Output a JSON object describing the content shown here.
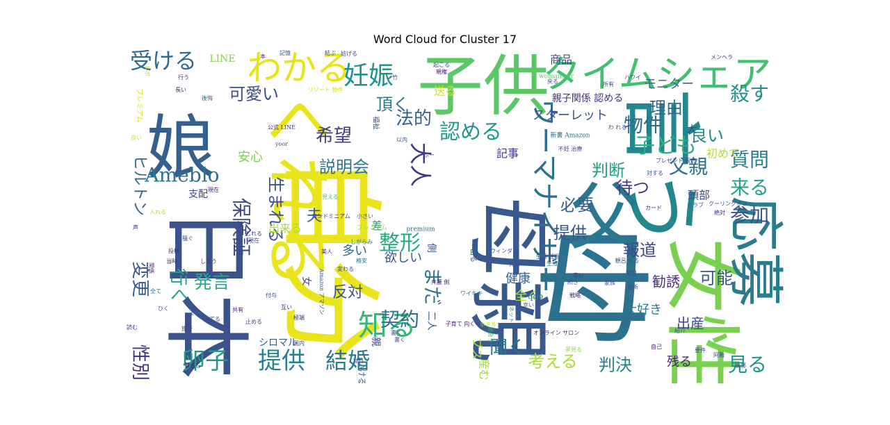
{
  "chart_data": {
    "type": "wordcloud",
    "title": "Word Cloud for Cluster 17",
    "words": [
      {
        "text": "子供",
        "weight": 100,
        "color": "#5ac864"
      },
      {
        "text": "娘",
        "weight": 96,
        "color": "#355f8d"
      },
      {
        "text": "母親",
        "weight": 95,
        "color": "#38598c"
      },
      {
        "text": "母",
        "weight": 94,
        "color": "#2c728e"
      },
      {
        "text": "日本",
        "weight": 93,
        "color": "#3b528b"
      },
      {
        "text": "自分",
        "weight": 92,
        "color": "#eae51a"
      },
      {
        "text": "言う",
        "weight": 91,
        "color": "#24868e"
      },
      {
        "text": "父",
        "weight": 88,
        "color": "#2a788e"
      },
      {
        "text": "女性",
        "weight": 87,
        "color": "#7ad151"
      },
      {
        "text": "くれる",
        "weight": 85,
        "color": "#eae51a"
      },
      {
        "text": "応募",
        "weight": 80,
        "color": "#287c8e"
      },
      {
        "text": "タイムシェア",
        "weight": 76,
        "color": "#44bf70"
      },
      {
        "text": "わかる",
        "weight": 70,
        "color": "#e5e419"
      },
      {
        "text": "ウーマナイザー",
        "weight": 62,
        "color": "#2d708e"
      },
      {
        "text": "妊娠",
        "weight": 55,
        "color": "#21918c"
      },
      {
        "text": "知る",
        "weight": 54,
        "color": "#35b779"
      },
      {
        "text": "受ける",
        "weight": 50,
        "color": "#31688e"
      },
      {
        "text": "卵子",
        "weight": 48,
        "color": "#1e9c89"
      },
      {
        "text": "提供",
        "weight": 48,
        "color": "#26828e"
      },
      {
        "text": "結婚",
        "weight": 47,
        "color": "#2a788e"
      },
      {
        "text": "整形",
        "weight": 46,
        "color": "#25ab82"
      },
      {
        "text": "保険証",
        "weight": 45,
        "color": "#3e4a89"
      },
      {
        "text": "殺す",
        "weight": 45,
        "color": "#21918c"
      },
      {
        "text": "大人",
        "weight": 44,
        "color": "#453781"
      },
      {
        "text": "認める",
        "weight": 44,
        "color": "#1f988b"
      },
      {
        "text": "子ども",
        "weight": 43,
        "color": "#2db27d"
      },
      {
        "text": "物件",
        "weight": 42,
        "color": "#2e6d8e"
      },
      {
        "text": "質問",
        "weight": 42,
        "color": "#287d8e"
      },
      {
        "text": "性別",
        "weight": 42,
        "color": "#46327e"
      },
      {
        "text": "変更",
        "weight": 42,
        "color": "#375b8d"
      },
      {
        "text": "ヒルトン",
        "weight": 41,
        "color": "#31688e"
      },
      {
        "text": "Ameblo",
        "weight": 40,
        "color": "#2c728e"
      },
      {
        "text": "契約",
        "weight": 40,
        "color": "#2d708e"
      },
      {
        "text": "まだ",
        "weight": 40,
        "color": "#2a768e"
      },
      {
        "text": "来る",
        "weight": 40,
        "color": "#20a386"
      },
      {
        "text": "参加",
        "weight": 40,
        "color": "#3b528b"
      },
      {
        "text": "父親",
        "weight": 40,
        "color": "#2c718e"
      },
      {
        "text": "見る",
        "weight": 39,
        "color": "#21918c"
      },
      {
        "text": "理由",
        "weight": 38,
        "color": "#2f6b8e"
      },
      {
        "text": "希望",
        "weight": 37,
        "color": "#443a83"
      },
      {
        "text": "発言",
        "weight": 37,
        "color": "#25ab82"
      },
      {
        "text": "行く",
        "weight": 37,
        "color": "#22a785"
      },
      {
        "text": "聞く",
        "weight": 36,
        "color": "#2c738e"
      },
      {
        "text": "考える",
        "weight": 35,
        "color": "#a8db34"
      },
      {
        "text": "説明会",
        "weight": 35,
        "color": "#2b758e"
      },
      {
        "text": "法的",
        "weight": 35,
        "color": "#34618d"
      },
      {
        "text": "頂く",
        "weight": 34,
        "color": "#2a788e"
      },
      {
        "text": "可愛い",
        "weight": 33,
        "color": "#3d4e8a"
      },
      {
        "text": "判決",
        "weight": 33,
        "color": "#26828e"
      },
      {
        "text": "待つ",
        "weight": 32,
        "color": "#453781"
      },
      {
        "text": "良い",
        "weight": 32,
        "color": "#24868e"
      },
      {
        "text": "生まれる",
        "weight": 32,
        "color": "#3b528b"
      },
      {
        "text": "必要",
        "weight": 31,
        "color": "#34618d"
      },
      {
        "text": "提供",
        "weight": 31,
        "color": "#39568c"
      },
      {
        "text": "判断",
        "weight": 31,
        "color": "#1fa088"
      },
      {
        "text": "可能",
        "weight": 30,
        "color": "#3a548c"
      },
      {
        "text": "報道",
        "weight": 30,
        "color": "#3e4989"
      },
      {
        "text": "夫",
        "weight": 30,
        "color": "#37598c"
      },
      {
        "text": "反対",
        "weight": 29,
        "color": "#3a538b"
      },
      {
        "text": "スターレット",
        "weight": 26,
        "color": "#3c508b"
      },
      {
        "text": "出産",
        "weight": 26,
        "color": "#404688"
      },
      {
        "text": "勧誘",
        "weight": 26,
        "color": "#472f7d"
      },
      {
        "text": "健康",
        "weight": 25,
        "color": "#34618d"
      },
      {
        "text": "大好き",
        "weight": 25,
        "color": "#2a788e"
      },
      {
        "text": "残る",
        "weight": 24,
        "color": "#482374"
      },
      {
        "text": "モニター",
        "weight": 24,
        "color": "#2f6b8e"
      },
      {
        "text": "欲しい",
        "weight": 24,
        "color": "#39568c"
      },
      {
        "text": "安心",
        "weight": 23,
        "color": "#7ad151"
      },
      {
        "text": "多い",
        "weight": 23,
        "color": "#31688e"
      },
      {
        "text": "全く",
        "weight": 22,
        "color": "#b5de2b"
      },
      {
        "text": "記事",
        "weight": 22,
        "color": "#443983"
      },
      {
        "text": "頭部",
        "weight": 22,
        "color": "#3e4c8a"
      },
      {
        "text": "商品",
        "weight": 22,
        "color": "#3f4788"
      },
      {
        "text": "初めて",
        "weight": 21,
        "color": "#b5de2b"
      },
      {
        "text": "産む",
        "weight": 20,
        "color": "#a0da39"
      },
      {
        "text": "送る",
        "weight": 20,
        "color": "#d8e219"
      },
      {
        "text": "出来る",
        "weight": 19,
        "color": "#addc30"
      },
      {
        "text": "差",
        "weight": 19,
        "color": "#20a386"
      },
      {
        "text": "ブス",
        "weight": 19,
        "color": "#bddf26"
      },
      {
        "text": "支配",
        "weight": 18,
        "color": "#404588"
      },
      {
        "text": "大",
        "weight": 18,
        "color": "#3e4989"
      },
      {
        "text": "親子関係 認める",
        "weight": 18,
        "color": "#472d7b"
      },
      {
        "text": "シロマル",
        "weight": 17,
        "color": "#355f8d"
      },
      {
        "text": "LINE",
        "weight": 17,
        "color": "#84d44b"
      },
      {
        "text": "qoo",
        "weight": 17,
        "color": "#2a768e"
      },
      {
        "text": "二人",
        "weight": 16,
        "color": "#365c8d"
      },
      {
        "text": "女",
        "weight": 16,
        "color": "#3e4989"
      },
      {
        "text": "側",
        "weight": 15,
        "color": "#39558c"
      },
      {
        "text": "プレミアム",
        "weight": 14,
        "color": "#d8e219"
      },
      {
        "text": "親",
        "weight": 14,
        "color": "#3f4889"
      },
      {
        "text": "いける",
        "weight": 14,
        "color": "#355e8d"
      },
      {
        "text": "出る",
        "weight": 12,
        "color": "#31688e"
      },
      {
        "text": "福祉",
        "weight": 12,
        "color": "#3b528b"
      },
      {
        "text": "womanizer",
        "weight": 10,
        "color": "#5ec962"
      },
      {
        "text": "新書 Amazon",
        "weight": 10,
        "color": "#2e6e8e"
      },
      {
        "text": "プレミアム",
        "weight": 10,
        "color": "#a5db36"
      },
      {
        "text": "premium",
        "weight": 10,
        "color": "#2d708e"
      },
      {
        "text": "ハワイ",
        "weight": 9,
        "color": "#414487"
      },
      {
        "text": "不妊 治療",
        "weight": 9,
        "color": "#3f4889"
      },
      {
        "text": "カード",
        "weight": 9,
        "color": "#482677"
      },
      {
        "text": "ウィンダム",
        "weight": 9,
        "color": "#3b528b"
      },
      {
        "text": "オンライン サロン",
        "weight": 9,
        "color": "#482475"
      },
      {
        "text": "クーリングオフ",
        "weight": 9,
        "color": "#3e4c8a"
      },
      {
        "text": "メンヘラ",
        "weight": 9,
        "color": "#46327e"
      },
      {
        "text": "コンドミニアム",
        "weight": 9,
        "color": "#472c7a"
      },
      {
        "text": "公式 LINE",
        "weight": 9,
        "color": "#472a7a"
      },
      {
        "text": "ワイキキ",
        "weight": 9,
        "color": "#2e6f8e"
      },
      {
        "text": "子育て 向く",
        "weight": 9,
        "color": "#482071"
      },
      {
        "text": "Amazon アマゾン",
        "weight": 8,
        "color": "#3a548c"
      },
      {
        "text": "ネット",
        "weight": 8,
        "color": "#25848e"
      },
      {
        "text": "リゾート 物件",
        "weight": 8,
        "color": "#d5e21a"
      },
      {
        "text": "ルポ",
        "weight": 8,
        "color": "#a2da37"
      },
      {
        "text": "プレゼント 販売",
        "weight": 8,
        "color": "#3d4e8a"
      },
      {
        "text": "生涯 妊娠",
        "weight": 8,
        "color": "#3b528b"
      },
      {
        "text": "弁護 側",
        "weight": 8,
        "color": "#481f70"
      },
      {
        "text": "観呂 入る",
        "weight": 8,
        "color": "#38598c"
      },
      {
        "text": "ホテル",
        "weight": 8,
        "color": "#b8de29"
      },
      {
        "text": "記憶",
        "weight": 8,
        "color": "#3e4c8a"
      },
      {
        "text": "本",
        "weight": 8,
        "color": "#482878"
      },
      {
        "text": "結ぶ",
        "weight": 8,
        "color": "#3f4889"
      },
      {
        "text": "妨げる",
        "weight": 8,
        "color": "#3f4889"
      },
      {
        "text": "起こる",
        "weight": 8,
        "color": "#404588"
      },
      {
        "text": "親権",
        "weight": 8,
        "color": "#481b6d"
      },
      {
        "text": "戻る",
        "weight": 8,
        "color": "#3b528b"
      },
      {
        "text": "所有",
        "weight": 8,
        "color": "#3e4a89"
      },
      {
        "text": "後悔",
        "weight": 8,
        "color": "#2d708e"
      },
      {
        "text": "当時",
        "weight": 8,
        "color": "#482173"
      },
      {
        "text": "良い",
        "weight": 8,
        "color": "#c0df25"
      },
      {
        "text": "しまう",
        "weight": 8,
        "color": "#453781"
      },
      {
        "text": "投稿",
        "weight": 8,
        "color": "#46307e"
      },
      {
        "text": "しれる",
        "weight": 8,
        "color": "#46337f"
      },
      {
        "text": "小さい",
        "weight": 8,
        "color": "#3d4d8a"
      },
      {
        "text": "しがらみ",
        "weight": 8,
        "color": "#29798e"
      },
      {
        "text": "美人",
        "weight": 8,
        "color": "#482878"
      },
      {
        "text": "格安",
        "weight": 8,
        "color": "#2c728e"
      },
      {
        "text": "書く",
        "weight": 8,
        "color": "#404688"
      },
      {
        "text": "先日",
        "weight": 8,
        "color": "#3d4d8a"
      },
      {
        "text": "続き",
        "weight": 8,
        "color": "#3b518b"
      },
      {
        "text": "変わる",
        "weight": 8,
        "color": "#3b518b"
      },
      {
        "text": "互い",
        "weight": 8,
        "color": "#482475"
      },
      {
        "text": "全て",
        "weight": 8,
        "color": "#2e6e8e"
      },
      {
        "text": "よい",
        "weight": 8,
        "color": "#2c728e"
      },
      {
        "text": "止める",
        "weight": 8,
        "color": "#3e4a89"
      },
      {
        "text": "極端",
        "weight": 8,
        "color": "#482677"
      },
      {
        "text": "当日",
        "weight": 8,
        "color": "#3b528b"
      },
      {
        "text": "国内",
        "weight": 8,
        "color": "#433e85"
      },
      {
        "text": "海外",
        "weight": 8,
        "color": "#29798e"
      },
      {
        "text": "紹介",
        "weight": 8,
        "color": "#3e4989"
      },
      {
        "text": "自己",
        "weight": 8,
        "color": "#482374"
      },
      {
        "text": "要件",
        "weight": 8,
        "color": "#3e4a89"
      },
      {
        "text": "阿難",
        "weight": 8,
        "color": "#3f4889"
      },
      {
        "text": "幸い",
        "weight": 8,
        "color": "#2f6c8e"
      },
      {
        "text": "絶対",
        "weight": 8,
        "color": "#472f7d"
      },
      {
        "text": "クラブ",
        "weight": 8,
        "color": "#32658e"
      },
      {
        "text": "対する",
        "weight": 8,
        "color": "#3b518b"
      },
      {
        "text": "度目",
        "weight": 8,
        "color": "#3d4d8a"
      },
      {
        "text": "頭",
        "weight": 8,
        "color": "#3f4788"
      },
      {
        "text": "SM",
        "weight": 8,
        "color": "#2a768e"
      },
      {
        "text": "幸い",
        "weight": 8,
        "color": "#423f85"
      },
      {
        "text": "戦略",
        "weight": 8,
        "color": "#482475"
      },
      {
        "text": "出会う",
        "weight": 8,
        "color": "#40bd72"
      },
      {
        "text": "夢見る",
        "weight": 8,
        "color": "#8fd744"
      },
      {
        "text": "声",
        "weight": 8,
        "color": "#482173"
      },
      {
        "text": "読む",
        "weight": 8,
        "color": "#46327e"
      },
      {
        "text": "見える",
        "weight": 8,
        "color": "#4ac16d"
      },
      {
        "text": "捨てる",
        "weight": 8,
        "color": "#3c4f8a"
      },
      {
        "text": "関係",
        "weight": 8,
        "color": "#482878"
      },
      {
        "text": "共有",
        "weight": 8,
        "color": "#481f70"
      },
      {
        "text": "付与",
        "weight": 8,
        "color": "#3e4989"
      },
      {
        "text": "現在",
        "weight": 8,
        "color": "#3e4c8a"
      },
      {
        "text": "騒ぐ",
        "weight": 8,
        "color": "#3b518b"
      },
      {
        "text": "暮らし",
        "weight": 8,
        "color": "#48186a"
      },
      {
        "text": "旅行",
        "weight": 8,
        "color": "#3f4788"
      },
      {
        "text": "入れる",
        "weight": 8,
        "color": "#b2dd2d"
      },
      {
        "text": "家族",
        "weight": 8,
        "color": "#3b528b"
      },
      {
        "text": "最新",
        "weight": 8,
        "color": "#3d4d8a"
      },
      {
        "text": "生殖",
        "weight": 8,
        "color": "#2b748e"
      },
      {
        "text": "ひく",
        "weight": 8,
        "color": "#3a548c"
      },
      {
        "text": "わ れる",
        "weight": 8,
        "color": "#3b528b"
      },
      {
        "text": "ふー",
        "weight": 8,
        "color": "#3e4a89"
      },
      {
        "text": "yoor",
        "weight": 8,
        "color": "#3e4c8a"
      },
      {
        "text": "頭部",
        "weight": 8,
        "color": "#3d4d8a"
      },
      {
        "text": "以内",
        "weight": 8,
        "color": "#3b528b"
      },
      {
        "text": "竹",
        "weight": 8,
        "color": "#3e4989"
      },
      {
        "text": "行う",
        "weight": 8,
        "color": "#482878"
      },
      {
        "text": "長い",
        "weight": 8,
        "color": "#48186a"
      },
      {
        "text": "現在",
        "weight": 8,
        "color": "#481f70"
      },
      {
        "text": "書く",
        "weight": 8,
        "color": "#3c4f8a"
      }
    ]
  }
}
